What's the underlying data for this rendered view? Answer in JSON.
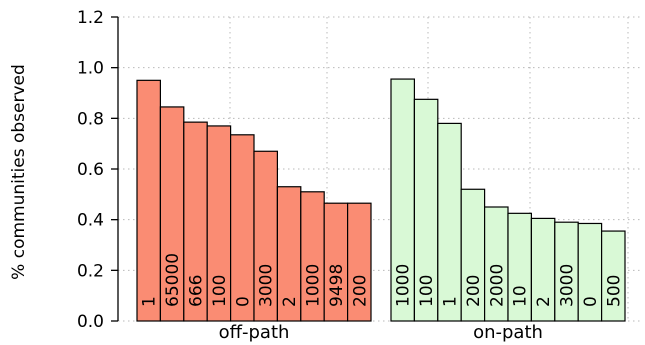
{
  "chart_data": {
    "type": "bar",
    "xlabel": "",
    "ylabel": "% communities observed",
    "ylim": [
      0,
      1.2
    ],
    "y_ticks": [
      "0.0",
      "0.2",
      "0.4",
      "0.6",
      "0.8",
      "1.0",
      "1.2"
    ],
    "grid": true,
    "groups": [
      {
        "name": "off-path",
        "color": "#fa8c73",
        "categories": [
          "1",
          "65000",
          "666",
          "100",
          "0",
          "3000",
          "2",
          "1000",
          "9498",
          "200"
        ],
        "values": [
          0.95,
          0.845,
          0.785,
          0.77,
          0.735,
          0.67,
          0.53,
          0.51,
          0.465,
          0.465
        ]
      },
      {
        "name": "on-path",
        "color": "#d9f9d6",
        "categories": [
          "1000",
          "100",
          "1",
          "200",
          "2000",
          "10",
          "2",
          "3000",
          "0",
          "500"
        ],
        "values": [
          0.955,
          0.875,
          0.78,
          0.52,
          0.45,
          0.425,
          0.405,
          0.39,
          0.385,
          0.355
        ]
      }
    ]
  }
}
